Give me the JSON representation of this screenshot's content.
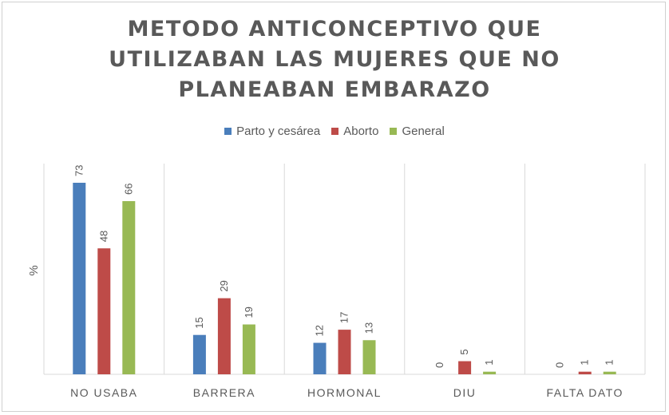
{
  "chart_data": {
    "type": "bar",
    "title_lines": [
      "METODO ANTICONCEPTIVO QUE",
      "UTILIZABAN LAS MUJERES QUE NO",
      "PLANEABAN EMBARAZO"
    ],
    "ylabel": "%",
    "categories": [
      "NO USABA",
      "BARRERA",
      "HORMONAL",
      "DIU",
      "FALTA DATO"
    ],
    "series": [
      {
        "name": "Parto y cesárea",
        "color": "#4a7ebb",
        "values": [
          73,
          15,
          12,
          0,
          0
        ]
      },
      {
        "name": "Aborto",
        "color": "#be4b48",
        "values": [
          48,
          29,
          17,
          5,
          1
        ]
      },
      {
        "name": "General",
        "color": "#98b954",
        "values": [
          66,
          19,
          13,
          1,
          1
        ]
      }
    ],
    "ylim": [
      0,
      80
    ],
    "grid": "vertical separators",
    "legend_position": "top"
  }
}
